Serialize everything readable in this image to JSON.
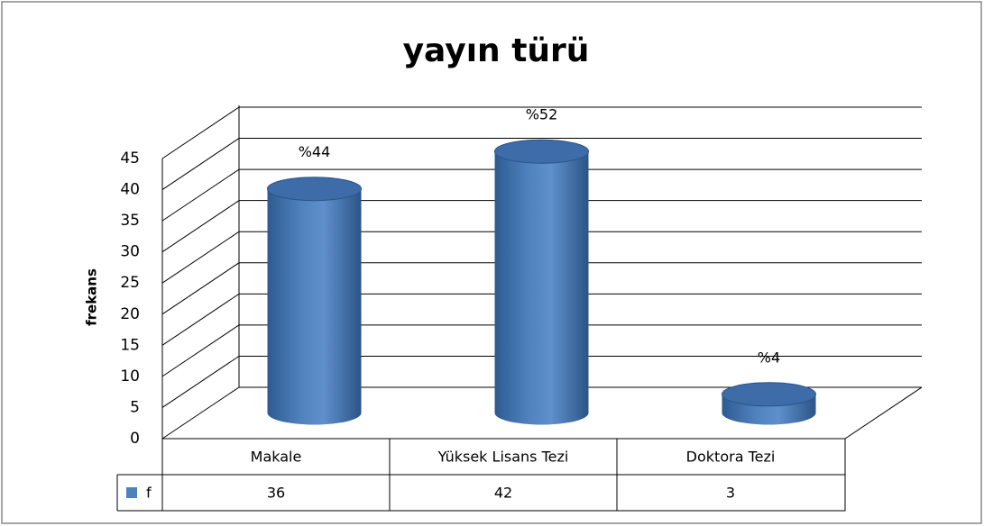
{
  "chart_data": {
    "type": "bar",
    "title": "yayın türü",
    "y_label": "frekans",
    "categories": [
      "Makale",
      "Yüksek Lisans Tezi",
      "Doktora Tezi"
    ],
    "series": [
      {
        "name": "f",
        "color": "#4f81bd",
        "values": [
          36,
          42,
          3
        ]
      }
    ],
    "percent_labels": [
      "%44",
      "%52",
      "%4"
    ],
    "ylim": [
      0,
      45
    ],
    "yticks": [
      0,
      5,
      10,
      15,
      20,
      25,
      30,
      35,
      40,
      45
    ],
    "grid": true
  }
}
